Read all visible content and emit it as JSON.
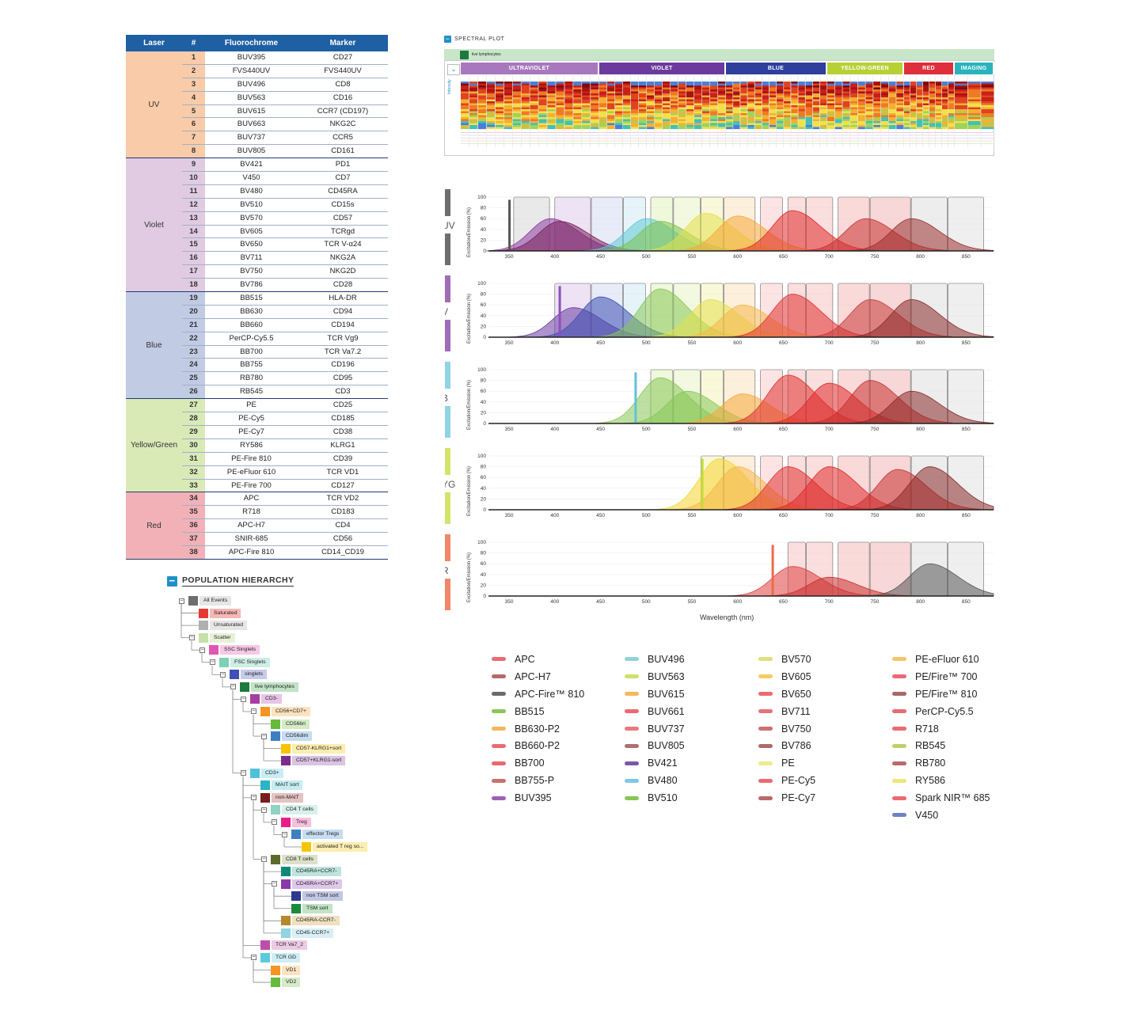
{
  "panel_table": {
    "headers": [
      "Laser",
      "#",
      "Fluorochrome",
      "Marker"
    ],
    "groups": [
      {
        "laser": "UV",
        "color": "#f9cba8",
        "rows": [
          [
            "1",
            "BUV395",
            "CD27"
          ],
          [
            "2",
            "FVS440UV",
            "FVS440UV"
          ],
          [
            "3",
            "BUV496",
            "CD8"
          ],
          [
            "4",
            "BUV563",
            "CD16"
          ],
          [
            "5",
            "BUV615",
            "CCR7 (CD197)"
          ],
          [
            "6",
            "BUV663",
            "NKG2C"
          ],
          [
            "7",
            "BUV737",
            "CCR5"
          ],
          [
            "8",
            "BUV805",
            "CD161"
          ]
        ]
      },
      {
        "laser": "Violet",
        "color": "#e0cbe3",
        "rows": [
          [
            "9",
            "BV421",
            "PD1"
          ],
          [
            "10",
            "V450",
            "CD7"
          ],
          [
            "11",
            "BV480",
            "CD45RA"
          ],
          [
            "12",
            "BV510",
            "CD15s"
          ],
          [
            "13",
            "BV570",
            "CD57"
          ],
          [
            "14",
            "BV605",
            "TCRgd"
          ],
          [
            "15",
            "BV650",
            "TCR V-α24"
          ],
          [
            "16",
            "BV711",
            "NKG2A"
          ],
          [
            "17",
            "BV750",
            "NKG2D"
          ],
          [
            "18",
            "BV786",
            "CD28"
          ]
        ]
      },
      {
        "laser": "Blue",
        "color": "#c2cbe4",
        "rows": [
          [
            "19",
            "BB515",
            "HLA-DR"
          ],
          [
            "20",
            "BB630",
            "CD94"
          ],
          [
            "21",
            "BB660",
            "CD194"
          ],
          [
            "22",
            "PerCP-Cy5.5",
            "TCR Vg9"
          ],
          [
            "23",
            "BB700",
            "TCR Va7.2"
          ],
          [
            "24",
            "BB755",
            "CD196"
          ],
          [
            "25",
            "RB780",
            "CD95"
          ],
          [
            "26",
            "RB545",
            "CD3"
          ]
        ]
      },
      {
        "laser": "Yellow/Green",
        "color": "#daeab7",
        "rows": [
          [
            "27",
            "PE",
            "CD25"
          ],
          [
            "28",
            "PE-Cy5",
            "CD185"
          ],
          [
            "29",
            "PE-Cy7",
            "CD38"
          ],
          [
            "30",
            "RY586",
            "KLRG1"
          ],
          [
            "31",
            "PE-Fire 810",
            "CD39"
          ],
          [
            "32",
            "PE-eFluor 610",
            "TCR VD1"
          ],
          [
            "33",
            "PE-Fire 700",
            "CD127"
          ]
        ]
      },
      {
        "laser": "Red",
        "color": "#f2b1b7",
        "rows": [
          [
            "34",
            "APC",
            "TCR VD2"
          ],
          [
            "35",
            "R718",
            "CD183"
          ],
          [
            "36",
            "APC-H7",
            "CD4"
          ],
          [
            "37",
            "SNIR-685",
            "CD56"
          ],
          [
            "38",
            "APC-Fire 810",
            "CD14_CD19"
          ]
        ]
      }
    ]
  },
  "spectral_plot": {
    "title": "SPECTRAL PLOT",
    "population": "live lymphocytes",
    "lasers": [
      {
        "name": "ULTRAVIOLET",
        "color": "#a778be",
        "channels": 16
      },
      {
        "name": "VIOLET",
        "color": "#6c3a9e",
        "channels": 16
      },
      {
        "name": "BLUE",
        "color": "#2e3f9e",
        "channels": 14
      },
      {
        "name": "YELLOW-GREEN",
        "color": "#b7d036",
        "channels": 10
      },
      {
        "name": "RED",
        "color": "#de2f3a",
        "channels": 8
      },
      {
        "name": "IMAGING",
        "color": "#2ab3bd",
        "channels": 3
      }
    ],
    "y_axis_label": "Intensity"
  },
  "excitation_plots": {
    "y_label": "Excitation/Emission (%)",
    "x_label": "Wavelength (nm)",
    "x_ticks": [
      "350",
      "400",
      "450",
      "500",
      "550",
      "600",
      "650",
      "700",
      "750",
      "800",
      "850"
    ],
    "y_ticks": [
      "100",
      "80",
      "60",
      "40",
      "20",
      "0"
    ],
    "panels": [
      {
        "laser": "UV",
        "bar_color": "#6e6e6e",
        "line_color": "#555555"
      },
      {
        "laser": "V",
        "bar_color": "#9f6cb7",
        "line_color": "#8a4fbf"
      },
      {
        "laser": "B",
        "bar_color": "#8fd3e4",
        "line_color": "#5fc3d8"
      },
      {
        "laser": "YG",
        "bar_color": "#d4e36a",
        "line_color": "#c7dc3c"
      },
      {
        "laser": "R",
        "bar_color": "#f0876a",
        "line_color": "#ee6a4a"
      }
    ]
  },
  "legend": {
    "columns": [
      [
        [
          "APC",
          "#ea6b71"
        ],
        [
          "APC-H7",
          "#b56a6a"
        ],
        [
          "APC-Fire™ 810",
          "#6b6b6b"
        ],
        [
          "BB515",
          "#8cc65a"
        ],
        [
          "BB630-P2",
          "#f5b75a"
        ],
        [
          "BB660-P2",
          "#ea6b71"
        ],
        [
          "BB700",
          "#e86a6e"
        ],
        [
          "BB755-P",
          "#c9716f"
        ],
        [
          "BUV395",
          "#9e5fb4"
        ]
      ],
      [
        [
          "BUV496",
          "#8fd3d9"
        ],
        [
          "BUV563",
          "#cfe06a"
        ],
        [
          "BUV615",
          "#f5b760"
        ],
        [
          "BUV661",
          "#ea6b71"
        ],
        [
          "BUV737",
          "#e87a7e"
        ],
        [
          "BUV805",
          "#b07070"
        ],
        [
          "BV421",
          "#7a58a8"
        ],
        [
          "BV480",
          "#7ec8e6"
        ],
        [
          "BV510",
          "#86c656"
        ]
      ],
      [
        [
          "BV570",
          "#dde27a"
        ],
        [
          "BV605",
          "#f5cc62"
        ],
        [
          "BV650",
          "#ea6b71"
        ],
        [
          "BV711",
          "#e77278"
        ],
        [
          "BV750",
          "#cd7070"
        ],
        [
          "BV786",
          "#b06a6a"
        ],
        [
          "PE",
          "#eeec8a"
        ],
        [
          "PE-Cy5",
          "#ea6b71"
        ],
        [
          "PE-Cy7",
          "#b86a6a"
        ]
      ],
      [
        [
          "PE-eFluor 610",
          "#f5c56a"
        ],
        [
          "PE/Fire™ 700",
          "#ea6b71"
        ],
        [
          "PE/Fire™ 810",
          "#a86868"
        ],
        [
          "PerCP-Cy5.5",
          "#ea6b71"
        ],
        [
          "R718",
          "#ea6b71"
        ],
        [
          "RB545",
          "#bcd06a"
        ],
        [
          "RB780",
          "#b86a6a"
        ],
        [
          "RY586",
          "#f0e47a"
        ],
        [
          "Spark NIR™ 685",
          "#ea6b71"
        ],
        [
          "V450",
          "#6e83c4"
        ]
      ]
    ]
  },
  "hierarchy": {
    "title": "POPULATION HIERARCHY",
    "nodes": [
      {
        "label": "All Events",
        "color": "#6d6d6d",
        "bg": "#e6e6e6",
        "depth": 0,
        "toggle": true
      },
      {
        "label": "Saturated",
        "color": "#e53935",
        "bg": "#f6b7b5",
        "depth": 1,
        "toggle": false
      },
      {
        "label": "Unsaturated",
        "color": "#b0b0b0",
        "bg": "#e6e6e6",
        "depth": 1,
        "toggle": false
      },
      {
        "label": "Scatter",
        "color": "#c5e1a5",
        "bg": "#e7f1d6",
        "depth": 1,
        "toggle": true
      },
      {
        "label": "SSC Singlets",
        "color": "#e056b0",
        "bg": "#f6c8e6",
        "depth": 2,
        "toggle": true
      },
      {
        "label": "FSC Singlets",
        "color": "#7ecfb7",
        "bg": "#cdeee5",
        "depth": 3,
        "toggle": true
      },
      {
        "label": "singlets",
        "color": "#3f51b5",
        "bg": "#c5cbeb",
        "depth": 4,
        "toggle": true
      },
      {
        "label": "live lymphocytes",
        "color": "#1b7a3c",
        "bg": "#c1e3c6",
        "depth": 5,
        "toggle": true
      },
      {
        "label": "CD3-",
        "color": "#a53ea3",
        "bg": "#e7c5e6",
        "depth": 6,
        "toggle": true
      },
      {
        "label": "CD56+CD7+",
        "color": "#f59422",
        "bg": "#fde2c0",
        "depth": 7,
        "toggle": true
      },
      {
        "label": "CD56bri",
        "color": "#66bb3a",
        "bg": "#d4ecc5",
        "depth": 8,
        "toggle": false
      },
      {
        "label": "CD56dim",
        "color": "#3e7fc4",
        "bg": "#c6dcf1",
        "depth": 8,
        "toggle": true
      },
      {
        "label": "CD57-KLRG1+sort",
        "color": "#f5c400",
        "bg": "#fcedb0",
        "depth": 9,
        "toggle": false
      },
      {
        "label": "CD57+KLRG1-sort",
        "color": "#7b2d8a",
        "bg": "#dcc3e2",
        "depth": 9,
        "toggle": false
      },
      {
        "label": "CD3+",
        "color": "#4fc1dc",
        "bg": "#c9ecf5",
        "depth": 6,
        "toggle": true
      },
      {
        "label": "MAIT sort",
        "color": "#29b4c8",
        "bg": "#c5ecf2",
        "depth": 7,
        "toggle": false
      },
      {
        "label": "non-MAIT",
        "color": "#7a1c1c",
        "bg": "#e4c3c3",
        "depth": 7,
        "toggle": true
      },
      {
        "label": "CD4 T cells",
        "color": "#8fd3c2",
        "bg": "#d7f0ea",
        "depth": 8,
        "toggle": true
      },
      {
        "label": "Treg",
        "color": "#e91e8c",
        "bg": "#f7c1de",
        "depth": 9,
        "toggle": true
      },
      {
        "label": "effector Tregs",
        "color": "#3e7fc4",
        "bg": "#c6dcf1",
        "depth": 10,
        "toggle": true
      },
      {
        "label": "activated T reg so...",
        "color": "#f5c400",
        "bg": "#fcedb0",
        "depth": 11,
        "toggle": false
      },
      {
        "label": "CD8 T cells",
        "color": "#5b6b2a",
        "bg": "#dbe0c8",
        "depth": 8,
        "toggle": true
      },
      {
        "label": "CD45RA+CCR7-",
        "color": "#0f8a78",
        "bg": "#bfe3dd",
        "depth": 9,
        "toggle": false
      },
      {
        "label": "CD45RA+CCR7+",
        "color": "#8a3aa8",
        "bg": "#e0c6ea",
        "depth": 9,
        "toggle": true
      },
      {
        "label": "non TSM sort",
        "color": "#2c3a8f",
        "bg": "#c2c7e4",
        "depth": 10,
        "toggle": false
      },
      {
        "label": "TSM sort",
        "color": "#1b8a3c",
        "bg": "#c1e3c6",
        "depth": 10,
        "toggle": false
      },
      {
        "label": "CD45RA-CCR7-",
        "color": "#b58a2a",
        "bg": "#eee0c0",
        "depth": 9,
        "toggle": false
      },
      {
        "label": "CD45-CCR7+",
        "color": "#8fd3e4",
        "bg": "#d8eff5",
        "depth": 9,
        "toggle": false
      },
      {
        "label": "TCR Va7_2",
        "color": "#c04ea8",
        "bg": "#eccbe4",
        "depth": 7,
        "toggle": false
      },
      {
        "label": "TCR GD",
        "color": "#5ec8dc",
        "bg": "#cdeef4",
        "depth": 7,
        "toggle": true
      },
      {
        "label": "VD1",
        "color": "#f59422",
        "bg": "#fde2c0",
        "depth": 8,
        "toggle": false
      },
      {
        "label": "VD2",
        "color": "#66bb3a",
        "bg": "#d4ecc5",
        "depth": 8,
        "toggle": false
      }
    ]
  }
}
